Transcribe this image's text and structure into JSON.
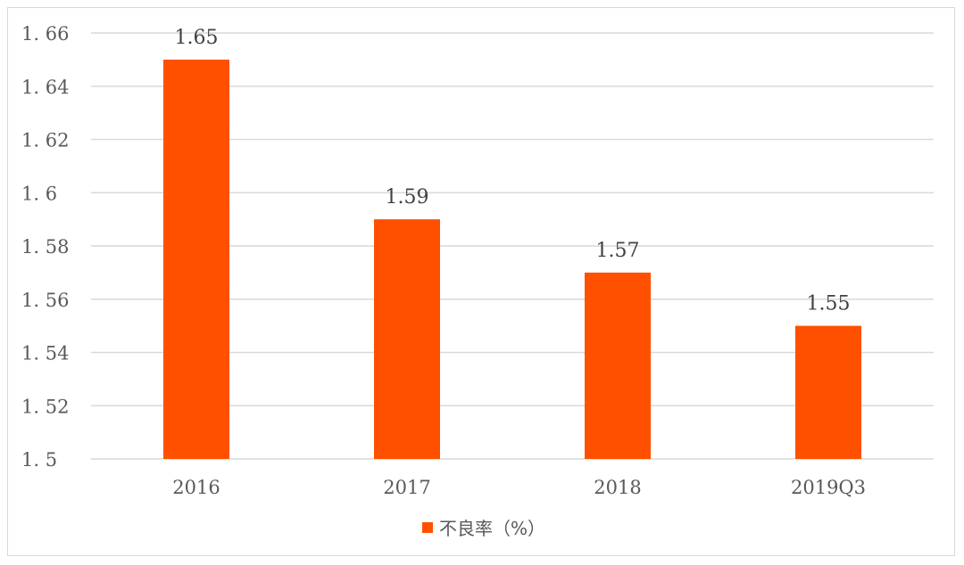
{
  "chart_data": {
    "type": "bar",
    "title": "",
    "xlabel": "",
    "ylabel": "",
    "categories": [
      "2016",
      "2017",
      "2018",
      "2019Q3"
    ],
    "series": [
      {
        "name": "不良率（%）",
        "values": [
          1.65,
          1.59,
          1.57,
          1.55
        ],
        "data_labels": [
          "1.65",
          "1.59",
          "1.57",
          "1.55"
        ],
        "color": "#ff5000"
      }
    ],
    "ylim": [
      1.5,
      1.66
    ],
    "y_ticks": [
      1.5,
      1.52,
      1.54,
      1.56,
      1.58,
      1.6,
      1.62,
      1.64,
      1.66
    ],
    "y_tick_labels": [
      "1. 5",
      "1. 52",
      "1. 54",
      "1. 56",
      "1. 58",
      "1. 6",
      "1. 62",
      "1. 64",
      "1. 66"
    ],
    "grid": true,
    "gridline_color": "#d9d9d9",
    "legend_position": "bottom"
  }
}
